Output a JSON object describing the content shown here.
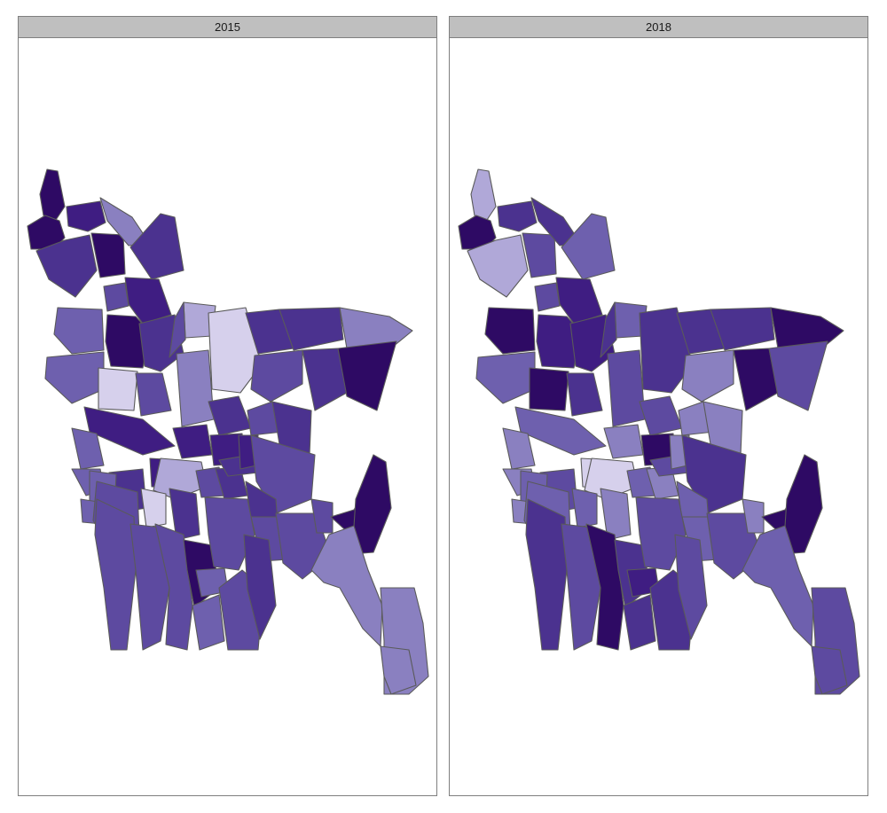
{
  "facets": [
    {
      "label": "2015",
      "districts": [
        {
          "id": "panchagarh",
          "color": "#2e0a64"
        },
        {
          "id": "thakurgaon",
          "color": "#2e0a64"
        },
        {
          "id": "nilphamari",
          "color": "#3f1d82"
        },
        {
          "id": "dinajpur",
          "color": "#4b328f"
        },
        {
          "id": "rangpur",
          "color": "#2e0a64"
        },
        {
          "id": "lalmonirhat",
          "color": "#8a80c0"
        },
        {
          "id": "kurigram",
          "color": "#4b328f"
        },
        {
          "id": "gaibandha",
          "color": "#3f1d82"
        },
        {
          "id": "joypurhat",
          "color": "#5d4aa0"
        },
        {
          "id": "chapainawabganj",
          "color": "#6e60ae"
        },
        {
          "id": "naogaon",
          "color": "#2e0a64"
        },
        {
          "id": "bogura",
          "color": "#4b328f"
        },
        {
          "id": "jamalpur",
          "color": "#b0a8d8"
        },
        {
          "id": "sherpur",
          "color": "#5d4aa0"
        },
        {
          "id": "rajshahi",
          "color": "#6e60ae"
        },
        {
          "id": "natore",
          "color": "#d6d0ec"
        },
        {
          "id": "sirajganj",
          "color": "#5d4aa0"
        },
        {
          "id": "tangail",
          "color": "#8a80c0"
        },
        {
          "id": "mymensingh",
          "color": "#d6d0ec"
        },
        {
          "id": "netrokona",
          "color": "#4b328f"
        },
        {
          "id": "sunamganj",
          "color": "#4b328f"
        },
        {
          "id": "sylhet",
          "color": "#8a80c0"
        },
        {
          "id": "kishoreganj",
          "color": "#5d4aa0"
        },
        {
          "id": "habiganj",
          "color": "#4b328f"
        },
        {
          "id": "moulvibazar",
          "color": "#2e0a64"
        },
        {
          "id": "pabna",
          "color": "#3f1d82"
        },
        {
          "id": "kushtia",
          "color": "#6e60ae"
        },
        {
          "id": "meherpur",
          "color": "#6e60ae"
        },
        {
          "id": "manikganj",
          "color": "#3f1d82"
        },
        {
          "id": "gazipur",
          "color": "#4b328f"
        },
        {
          "id": "dhaka",
          "color": "#3f1d82"
        },
        {
          "id": "narsingdi",
          "color": "#5d4aa0"
        },
        {
          "id": "brahmanbaria",
          "color": "#4b328f"
        },
        {
          "id": "rajbari",
          "color": "#3f1d82"
        },
        {
          "id": "faridpur",
          "color": "#b0a8d8"
        },
        {
          "id": "magura",
          "color": "#4b328f"
        },
        {
          "id": "jhenaidah",
          "color": "#6e60ae"
        },
        {
          "id": "chuadanga",
          "color": "#6e60ae"
        },
        {
          "id": "jashore",
          "color": "#5d4aa0"
        },
        {
          "id": "narail",
          "color": "#d6d0ec"
        },
        {
          "id": "gopalganj",
          "color": "#4b328f"
        },
        {
          "id": "madaripur",
          "color": "#5d4aa0"
        },
        {
          "id": "shariatpur",
          "color": "#4b328f"
        },
        {
          "id": "munshiganj",
          "color": "#4b328f"
        },
        {
          "id": "narayanganj",
          "color": "#3f1d82"
        },
        {
          "id": "comilla",
          "color": "#5d4aa0"
        },
        {
          "id": "chandpur",
          "color": "#4b328f"
        },
        {
          "id": "lakshmipur",
          "color": "#5d4aa0"
        },
        {
          "id": "noakhali",
          "color": "#5d4aa0"
        },
        {
          "id": "feni",
          "color": "#5d4aa0"
        },
        {
          "id": "satkhira",
          "color": "#5d4aa0"
        },
        {
          "id": "khulna",
          "color": "#5d4aa0"
        },
        {
          "id": "bagerhat",
          "color": "#5d4aa0"
        },
        {
          "id": "pirojpur",
          "color": "#2e0a64"
        },
        {
          "id": "jhalokati",
          "color": "#6e60ae"
        },
        {
          "id": "barishal",
          "color": "#5d4aa0"
        },
        {
          "id": "barguna",
          "color": "#6e60ae"
        },
        {
          "id": "patuakhali",
          "color": "#5d4aa0"
        },
        {
          "id": "bhola",
          "color": "#4b328f"
        },
        {
          "id": "khagrachhari",
          "color": "#2e0a64"
        },
        {
          "id": "rangamati",
          "color": "#2e0a64"
        },
        {
          "id": "chattogram",
          "color": "#8a80c0"
        },
        {
          "id": "bandarban",
          "color": "#8a80c0"
        },
        {
          "id": "coxsbazar",
          "color": "#8a80c0"
        }
      ]
    },
    {
      "label": "2018",
      "districts": [
        {
          "id": "panchagarh",
          "color": "#b0a8d8"
        },
        {
          "id": "thakurgaon",
          "color": "#2e0a64"
        },
        {
          "id": "nilphamari",
          "color": "#4b328f"
        },
        {
          "id": "dinajpur",
          "color": "#b0a8d8"
        },
        {
          "id": "rangpur",
          "color": "#5d4aa0"
        },
        {
          "id": "lalmonirhat",
          "color": "#4b328f"
        },
        {
          "id": "kurigram",
          "color": "#6e60ae"
        },
        {
          "id": "gaibandha",
          "color": "#3f1d82"
        },
        {
          "id": "joypurhat",
          "color": "#5d4aa0"
        },
        {
          "id": "chapainawabganj",
          "color": "#2e0a64"
        },
        {
          "id": "naogaon",
          "color": "#3f1d82"
        },
        {
          "id": "bogura",
          "color": "#3f1d82"
        },
        {
          "id": "jamalpur",
          "color": "#6e60ae"
        },
        {
          "id": "sherpur",
          "color": "#4b328f"
        },
        {
          "id": "rajshahi",
          "color": "#6e60ae"
        },
        {
          "id": "natore",
          "color": "#2e0a64"
        },
        {
          "id": "sirajganj",
          "color": "#4b328f"
        },
        {
          "id": "tangail",
          "color": "#5d4aa0"
        },
        {
          "id": "mymensingh",
          "color": "#4b328f"
        },
        {
          "id": "netrokona",
          "color": "#4b328f"
        },
        {
          "id": "sunamganj",
          "color": "#4b328f"
        },
        {
          "id": "sylhet",
          "color": "#2e0a64"
        },
        {
          "id": "kishoreganj",
          "color": "#8a80c0"
        },
        {
          "id": "habiganj",
          "color": "#2e0a64"
        },
        {
          "id": "moulvibazar",
          "color": "#5d4aa0"
        },
        {
          "id": "pabna",
          "color": "#6e60ae"
        },
        {
          "id": "kushtia",
          "color": "#8a80c0"
        },
        {
          "id": "meherpur",
          "color": "#8a80c0"
        },
        {
          "id": "manikganj",
          "color": "#8a80c0"
        },
        {
          "id": "gazipur",
          "color": "#5d4aa0"
        },
        {
          "id": "dhaka",
          "color": "#2e0a64"
        },
        {
          "id": "narsingdi",
          "color": "#8a80c0"
        },
        {
          "id": "brahmanbaria",
          "color": "#8a80c0"
        },
        {
          "id": "rajbari",
          "color": "#d6d0ec"
        },
        {
          "id": "faridpur",
          "color": "#d6d0ec"
        },
        {
          "id": "magura",
          "color": "#5d4aa0"
        },
        {
          "id": "jhenaidah",
          "color": "#6e60ae"
        },
        {
          "id": "chuadanga",
          "color": "#8a80c0"
        },
        {
          "id": "jashore",
          "color": "#6e60ae"
        },
        {
          "id": "narail",
          "color": "#6e60ae"
        },
        {
          "id": "gopalganj",
          "color": "#8a80c0"
        },
        {
          "id": "madaripur",
          "color": "#6e60ae"
        },
        {
          "id": "shariatpur",
          "color": "#8a80c0"
        },
        {
          "id": "munshiganj",
          "color": "#5d4aa0"
        },
        {
          "id": "narayanganj",
          "color": "#8a80c0"
        },
        {
          "id": "comilla",
          "color": "#4b328f"
        },
        {
          "id": "chandpur",
          "color": "#6e60ae"
        },
        {
          "id": "lakshmipur",
          "color": "#6e60ae"
        },
        {
          "id": "noakhali",
          "color": "#5d4aa0"
        },
        {
          "id": "feni",
          "color": "#8a80c0"
        },
        {
          "id": "satkhira",
          "color": "#4b328f"
        },
        {
          "id": "khulna",
          "color": "#5d4aa0"
        },
        {
          "id": "bagerhat",
          "color": "#2e0a64"
        },
        {
          "id": "pirojpur",
          "color": "#4b328f"
        },
        {
          "id": "jhalokati",
          "color": "#3f1d82"
        },
        {
          "id": "barishal",
          "color": "#5d4aa0"
        },
        {
          "id": "barguna",
          "color": "#4b328f"
        },
        {
          "id": "patuakhali",
          "color": "#4b328f"
        },
        {
          "id": "bhola",
          "color": "#5d4aa0"
        },
        {
          "id": "khagrachhari",
          "color": "#2e0a64"
        },
        {
          "id": "rangamati",
          "color": "#2e0a64"
        },
        {
          "id": "chattogram",
          "color": "#6e60ae"
        },
        {
          "id": "bandarban",
          "color": "#5d4aa0"
        },
        {
          "id": "coxsbazar",
          "color": "#5d4aa0"
        }
      ]
    }
  ]
}
